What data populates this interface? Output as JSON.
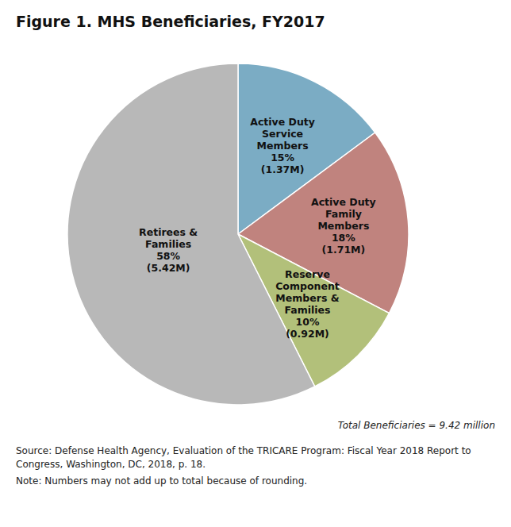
{
  "chart_data": {
    "type": "pie",
    "title": "Figure 1. MHS Beneficiaries, FY2017",
    "categories": [
      "Active Duty\nService\nMembers\n15%\n(1.37M)",
      "Active Duty\nFamily\nMembers\n18%\n(1.71M)",
      "Reserve\nComponent\nMembers &\nFamilies\n10%\n(0.92M)",
      "Retirees &\nFamilies\n58%\n(5.42M)"
    ],
    "values": [
      15,
      18,
      10,
      58
    ],
    "colors": [
      "#7bacc4",
      "#c0837e",
      "#b2c07a",
      "#b8b8b8"
    ],
    "annotations": [
      "Total Beneficiaries = 9.42 million",
      "Source: Defense Health Agency, Evaluation of the TRICARE Program: Fiscal Year 2018 Report to Congress, Washington, DC, 2018, p. 18.",
      "Note: Numbers may not add up to total because of rounding."
    ]
  }
}
